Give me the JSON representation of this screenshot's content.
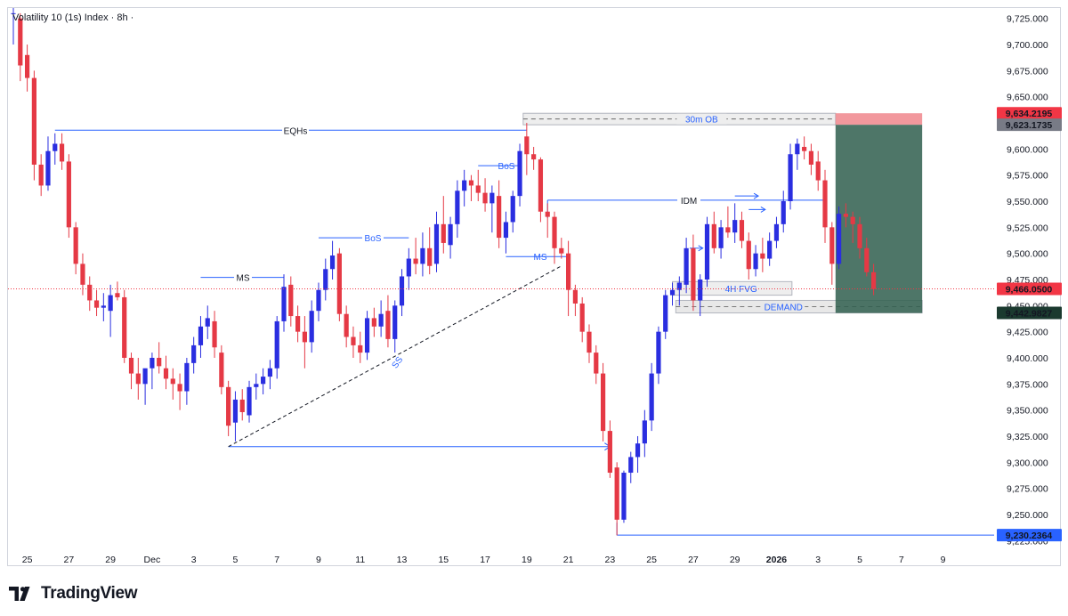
{
  "header": {
    "title": "Volatility 10 (1s) Index · 8h ·"
  },
  "footer": {
    "brand": "TradingView"
  },
  "colors": {
    "up": "#2a2ee0",
    "down": "#e53945",
    "accent_blue": "#2962ff",
    "zone_gray": "#d9d9d9",
    "position_green": "#2f5e4e",
    "position_red": "#f0868c",
    "current_price": "#f23645",
    "stop_label": "#787b86",
    "target_label": "#1b3a2f",
    "low_label": "#2962ff"
  },
  "chart_data": {
    "type": "candlestick",
    "title": "Volatility 10 (1s) Index · 8h ·",
    "ylim": [
      9215,
      9735
    ],
    "y_ticks": [
      9250,
      9275,
      9300,
      9325,
      9350,
      9375,
      9400,
      9425,
      9450,
      9475,
      9500,
      9525,
      9550,
      9575,
      9600,
      9625,
      9650,
      9675,
      9700,
      9725
    ],
    "y_tick_labels": [
      "9,250.000",
      "9,275.000",
      "9,300.000",
      "9,325.000",
      "9,350.000",
      "9,375.000",
      "9,400.000",
      "9,425.000",
      "9,450.000",
      "9,475.000",
      "9,500.000",
      "9,525.000",
      "9,550.000",
      "9,575.000",
      "9,600.000",
      "9,625.000",
      "9,650.000",
      "9,675.000",
      "9,700.000",
      "9,725.000"
    ],
    "y_tick_partial": "9,225.000",
    "x_ticks": [
      {
        "label": "25",
        "bar": 2
      },
      {
        "label": "27",
        "bar": 8
      },
      {
        "label": "29",
        "bar": 14
      },
      {
        "label": "Dec",
        "bar": 20
      },
      {
        "label": "3",
        "bar": 26
      },
      {
        "label": "5",
        "bar": 32
      },
      {
        "label": "7",
        "bar": 38
      },
      {
        "label": "9",
        "bar": 44
      },
      {
        "label": "11",
        "bar": 50
      },
      {
        "label": "13",
        "bar": 56
      },
      {
        "label": "15",
        "bar": 62
      },
      {
        "label": "17",
        "bar": 68
      },
      {
        "label": "19",
        "bar": 74
      },
      {
        "label": "21",
        "bar": 80
      },
      {
        "label": "23",
        "bar": 86
      },
      {
        "label": "25",
        "bar": 92
      },
      {
        "label": "27",
        "bar": 98
      },
      {
        "label": "29",
        "bar": 104
      },
      {
        "label": "2026",
        "bar": 110,
        "bold": true
      },
      {
        "label": "3",
        "bar": 116
      },
      {
        "label": "5",
        "bar": 122
      },
      {
        "label": "7",
        "bar": 128
      },
      {
        "label": "9",
        "bar": 134
      }
    ],
    "candles": [
      [
        9730,
        9735,
        9700,
        9730
      ],
      [
        9725,
        9730,
        9665,
        9680
      ],
      [
        9690,
        9700,
        9655,
        9668
      ],
      [
        9668,
        9675,
        9570,
        9585
      ],
      [
        9585,
        9595,
        9555,
        9565
      ],
      [
        9565,
        9612,
        9560,
        9598
      ],
      [
        9598,
        9615,
        9585,
        9605
      ],
      [
        9605,
        9615,
        9580,
        9588
      ],
      [
        9588,
        9595,
        9515,
        9525
      ],
      [
        9525,
        9530,
        9480,
        9490
      ],
      [
        9490,
        9500,
        9460,
        9470
      ],
      [
        9470,
        9478,
        9445,
        9455
      ],
      [
        9455,
        9465,
        9440,
        9448
      ],
      [
        9448,
        9462,
        9435,
        9450
      ],
      [
        9445,
        9470,
        9420,
        9460
      ],
      [
        9462,
        9473,
        9455,
        9458
      ],
      [
        9458,
        9465,
        9395,
        9400
      ],
      [
        9400,
        9405,
        9370,
        9385
      ],
      [
        9385,
        9400,
        9360,
        9375
      ],
      [
        9375,
        9385,
        9355,
        9390
      ],
      [
        9390,
        9405,
        9370,
        9400
      ],
      [
        9400,
        9415,
        9385,
        9392
      ],
      [
        9390,
        9402,
        9370,
        9380
      ],
      [
        9380,
        9390,
        9360,
        9375
      ],
      [
        9375,
        9385,
        9350,
        9368
      ],
      [
        9368,
        9400,
        9355,
        9395
      ],
      [
        9395,
        9420,
        9385,
        9412
      ],
      [
        9412,
        9440,
        9400,
        9430
      ],
      [
        9430,
        9450,
        9418,
        9438
      ],
      [
        9435,
        9445,
        9400,
        9410
      ],
      [
        9405,
        9412,
        9365,
        9372
      ],
      [
        9372,
        9378,
        9325,
        9335
      ],
      [
        9338,
        9368,
        9320,
        9360
      ],
      [
        9360,
        9370,
        9340,
        9348
      ],
      [
        9345,
        9378,
        9338,
        9372
      ],
      [
        9372,
        9385,
        9360,
        9375
      ],
      [
        9375,
        9390,
        9365,
        9382
      ],
      [
        9382,
        9398,
        9370,
        9390
      ],
      [
        9390,
        9440,
        9380,
        9435
      ],
      [
        9435,
        9480,
        9425,
        9468
      ],
      [
        9470,
        9478,
        9430,
        9440
      ],
      [
        9440,
        9450,
        9415,
        9425
      ],
      [
        9425,
        9440,
        9390,
        9415
      ],
      [
        9415,
        9455,
        9405,
        9445
      ],
      [
        9445,
        9472,
        9435,
        9465
      ],
      [
        9465,
        9495,
        9455,
        9485
      ],
      [
        9485,
        9512,
        9475,
        9498
      ],
      [
        9500,
        9505,
        9435,
        9442
      ],
      [
        9442,
        9450,
        9410,
        9420
      ],
      [
        9420,
        9430,
        9400,
        9412
      ],
      [
        9412,
        9425,
        9395,
        9405
      ],
      [
        9405,
        9445,
        9398,
        9438
      ],
      [
        9438,
        9448,
        9420,
        9430
      ],
      [
        9430,
        9455,
        9420,
        9442
      ],
      [
        9445,
        9460,
        9410,
        9418
      ],
      [
        9418,
        9455,
        9405,
        9450
      ],
      [
        9450,
        9485,
        9440,
        9478
      ],
      [
        9478,
        9505,
        9465,
        9495
      ],
      [
        9495,
        9515,
        9480,
        9490
      ],
      [
        9490,
        9520,
        9478,
        9505
      ],
      [
        9505,
        9525,
        9480,
        9488
      ],
      [
        9490,
        9540,
        9482,
        9528
      ],
      [
        9528,
        9555,
        9500,
        9510
      ],
      [
        9508,
        9535,
        9495,
        9528
      ],
      [
        9528,
        9570,
        9515,
        9560
      ],
      [
        9560,
        9580,
        9545,
        9570
      ],
      [
        9570,
        9575,
        9550,
        9565
      ],
      [
        9565,
        9580,
        9550,
        9558
      ],
      [
        9558,
        9572,
        9540,
        9548
      ],
      [
        9548,
        9565,
        9520,
        9558
      ],
      [
        9555,
        9570,
        9505,
        9515
      ],
      [
        9515,
        9540,
        9500,
        9530
      ],
      [
        9530,
        9560,
        9520,
        9555
      ],
      [
        9555,
        9605,
        9545,
        9598
      ],
      [
        9612,
        9625,
        9575,
        9595
      ],
      [
        9595,
        9602,
        9580,
        9590
      ],
      [
        9590,
        9592,
        9530,
        9540
      ],
      [
        9540,
        9548,
        9515,
        9535
      ],
      [
        9535,
        9540,
        9490,
        9505
      ],
      [
        9505,
        9515,
        9495,
        9500
      ],
      [
        9500,
        9512,
        9440,
        9465
      ],
      [
        9465,
        9470,
        9440,
        9452
      ],
      [
        9452,
        9458,
        9415,
        9425
      ],
      [
        9425,
        9432,
        9395,
        9405
      ],
      [
        9405,
        9412,
        9375,
        9385
      ],
      [
        9385,
        9395,
        9320,
        9330
      ],
      [
        9330,
        9340,
        9285,
        9290
      ],
      [
        9295,
        9300,
        9230,
        9245
      ],
      [
        9245,
        9292,
        9242,
        9290
      ],
      [
        9290,
        9310,
        9280,
        9305
      ],
      [
        9305,
        9325,
        9290,
        9318
      ],
      [
        9318,
        9350,
        9305,
        9340
      ],
      [
        9340,
        9395,
        9330,
        9385
      ],
      [
        9385,
        9430,
        9375,
        9425
      ],
      [
        9425,
        9465,
        9418,
        9460
      ],
      [
        9460,
        9472,
        9450,
        9465
      ],
      [
        9465,
        9478,
        9450,
        9472
      ],
      [
        9470,
        9515,
        9462,
        9505
      ],
      [
        9505,
        9518,
        9445,
        9455
      ],
      [
        9455,
        9480,
        9440,
        9475
      ],
      [
        9475,
        9535,
        9468,
        9528
      ],
      [
        9528,
        9540,
        9500,
        9505
      ],
      [
        9505,
        9532,
        9495,
        9525
      ],
      [
        9525,
        9545,
        9515,
        9520
      ],
      [
        9520,
        9548,
        9510,
        9532
      ],
      [
        9532,
        9540,
        9505,
        9512
      ],
      [
        9512,
        9520,
        9475,
        9485
      ],
      [
        9485,
        9508,
        9478,
        9500
      ],
      [
        9500,
        9515,
        9482,
        9495
      ],
      [
        9495,
        9520,
        9488,
        9512
      ],
      [
        9512,
        9535,
        9505,
        9528
      ],
      [
        9528,
        9560,
        9520,
        9550
      ],
      [
        9550,
        9605,
        9542,
        9595
      ],
      [
        9595,
        9610,
        9580,
        9605
      ],
      [
        9602,
        9612,
        9590,
        9598
      ],
      [
        9598,
        9605,
        9575,
        9585
      ],
      [
        9588,
        9598,
        9560,
        9570
      ],
      [
        9570,
        9580,
        9510,
        9525
      ],
      [
        9525,
        9530,
        9470,
        9490
      ],
      [
        9490,
        9545,
        9485,
        9538
      ],
      [
        9538,
        9548,
        9525,
        9535
      ],
      [
        9535,
        9540,
        9510,
        9528
      ],
      [
        9528,
        9535,
        9495,
        9505
      ],
      [
        9505,
        9515,
        9478,
        9482
      ],
      [
        9482,
        9490,
        9460,
        9466
      ]
    ],
    "levels": {
      "ob_top": 9634.2195,
      "ob_bottom": 9623.1735,
      "eqh": 9618,
      "idm": 9551,
      "ms_upper": 9477,
      "ms_lower": 9456,
      "bos_lower": 9515,
      "bos_upper": 9584,
      "fvg_top": 9473,
      "fvg_bottom": 9460,
      "demand_top": 9455,
      "demand_bottom": 9443,
      "sweep_low": 9315,
      "current": 9466.05,
      "target": 9442.9827,
      "entry": 9623.1735,
      "swing_low": 9230.2364
    },
    "annotations": {
      "eqhs": "EQHs",
      "ob": "30m OB",
      "bos1": "BoS",
      "bos2": "BoS",
      "ms1": "MS",
      "ms2": "MS",
      "idm": "IDM",
      "ss": "SS",
      "fvg": "4H FVG",
      "demand": "DEMAND"
    },
    "price_labels": {
      "stop": "9,634.2195",
      "entry": "9,623.1735",
      "current": "9,466.0500",
      "target": "9,442.9827",
      "low": "9,230.2364"
    }
  }
}
